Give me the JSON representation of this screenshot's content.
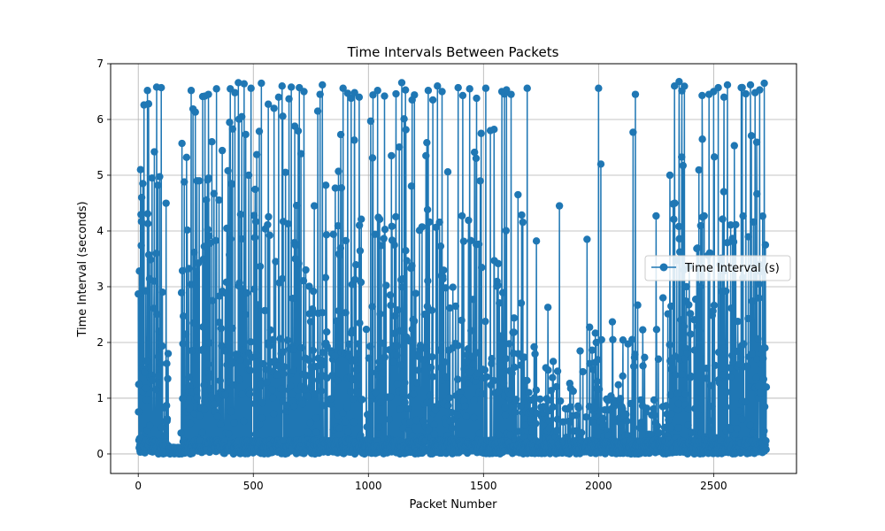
{
  "chart_data": {
    "type": "line",
    "title": "Time Intervals Between Packets",
    "xlabel": "Packet Number",
    "ylabel": "Time Interval (seconds)",
    "xlim": [
      -120,
      2860
    ],
    "ylim": [
      -0.35,
      7.0
    ],
    "xticks": [
      0,
      500,
      1000,
      1500,
      2000,
      2500
    ],
    "yticks": [
      0,
      1,
      2,
      3,
      4,
      5,
      6,
      7
    ],
    "grid": true,
    "legend_position": "center-right",
    "marker": "circle",
    "series": [
      {
        "name": "Time Interval (s)",
        "color": "#1f77b4",
        "n_points": 2730,
        "x_range": [
          0,
          2729
        ],
        "y_range": [
          0.0,
          6.68
        ],
        "peaks": [
          [
            0,
            2.87
          ],
          [
            5,
            3.28
          ],
          [
            10,
            5.1
          ],
          [
            15,
            4.6
          ],
          [
            20,
            4.85
          ],
          [
            25,
            6.26
          ],
          [
            40,
            6.52
          ],
          [
            45,
            6.28
          ],
          [
            60,
            4.95
          ],
          [
            70,
            5.42
          ],
          [
            80,
            6.58
          ],
          [
            85,
            4.82
          ],
          [
            90,
            2.2
          ],
          [
            100,
            6.57
          ],
          [
            130,
            1.8
          ],
          [
            190,
            5.57
          ],
          [
            200,
            4.88
          ],
          [
            210,
            5.32
          ],
          [
            230,
            6.52
          ],
          [
            255,
            4.9
          ],
          [
            265,
            4.9
          ],
          [
            290,
            6.42
          ],
          [
            305,
            6.45
          ],
          [
            320,
            5.6
          ],
          [
            340,
            6.55
          ],
          [
            390,
            5.08
          ],
          [
            400,
            6.55
          ],
          [
            420,
            6.48
          ],
          [
            435,
            6.66
          ],
          [
            450,
            6.05
          ],
          [
            460,
            6.64
          ],
          [
            480,
            5.0
          ],
          [
            490,
            6.56
          ],
          [
            515,
            5.37
          ],
          [
            535,
            6.65
          ],
          [
            590,
            6.2
          ],
          [
            610,
            6.4
          ],
          [
            625,
            6.6
          ],
          [
            640,
            5.05
          ],
          [
            655,
            6.37
          ],
          [
            665,
            6.58
          ],
          [
            680,
            5.88
          ],
          [
            700,
            6.57
          ],
          [
            720,
            6.5
          ],
          [
            765,
            4.45
          ],
          [
            780,
            6.15
          ],
          [
            790,
            6.45
          ],
          [
            800,
            6.62
          ],
          [
            815,
            4.82
          ],
          [
            870,
            5.07
          ],
          [
            890,
            6.56
          ],
          [
            910,
            6.47
          ],
          [
            925,
            6.38
          ],
          [
            940,
            6.48
          ],
          [
            960,
            6.4
          ],
          [
            1010,
            5.97
          ],
          [
            1020,
            6.44
          ],
          [
            1040,
            6.52
          ],
          [
            1070,
            6.42
          ],
          [
            1100,
            5.35
          ],
          [
            1120,
            6.46
          ],
          [
            1145,
            6.66
          ],
          [
            1190,
            6.35
          ],
          [
            1200,
            6.44
          ],
          [
            1250,
            5.35
          ],
          [
            1260,
            6.52
          ],
          [
            1280,
            6.35
          ],
          [
            1300,
            6.6
          ],
          [
            1320,
            6.5
          ],
          [
            1345,
            5.06
          ],
          [
            1390,
            6.57
          ],
          [
            1410,
            6.43
          ],
          [
            1440,
            6.55
          ],
          [
            1470,
            6.38
          ],
          [
            1490,
            5.75
          ],
          [
            1510,
            6.56
          ],
          [
            1530,
            5.8
          ],
          [
            1580,
            6.5
          ],
          [
            1600,
            6.53
          ],
          [
            1620,
            6.45
          ],
          [
            1650,
            4.65
          ],
          [
            1690,
            6.56
          ],
          [
            1720,
            1.92
          ],
          [
            1730,
            3.82
          ],
          [
            1780,
            2.63
          ],
          [
            1830,
            4.45
          ],
          [
            1950,
            3.85
          ],
          [
            1990,
            2.0
          ],
          [
            2000,
            6.56
          ],
          [
            2010,
            5.2
          ],
          [
            2060,
            2.37
          ],
          [
            2150,
            5.77
          ],
          [
            2160,
            6.45
          ],
          [
            2170,
            2.67
          ],
          [
            2250,
            4.27
          ],
          [
            2280,
            2.8
          ],
          [
            2310,
            5.0
          ],
          [
            2330,
            6.6
          ],
          [
            2350,
            6.68
          ],
          [
            2370,
            3.3
          ],
          [
            2400,
            2.15
          ],
          [
            2450,
            6.43
          ],
          [
            2480,
            6.45
          ],
          [
            2500,
            6.5
          ],
          [
            2520,
            6.57
          ],
          [
            2545,
            6.4
          ],
          [
            2560,
            6.62
          ],
          [
            2590,
            5.53
          ],
          [
            2620,
            6.57
          ],
          [
            2640,
            6.46
          ],
          [
            2660,
            6.62
          ],
          [
            2680,
            6.48
          ],
          [
            2700,
            6.53
          ],
          [
            2720,
            6.65
          ],
          [
            2725,
            3.75
          ],
          [
            2730,
            1.2
          ]
        ],
        "sparse_region": [
          1700,
          2300
        ]
      }
    ]
  }
}
